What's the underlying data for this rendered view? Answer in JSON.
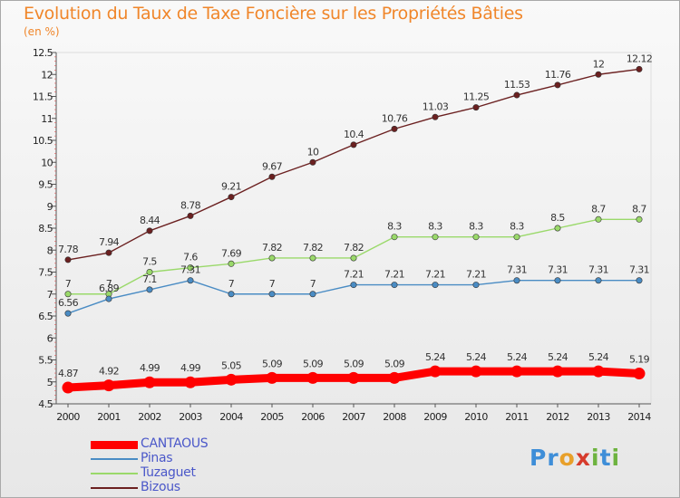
{
  "title": "Evolution du Taux de Taxe Foncière sur les Propriétés Bâties",
  "unit": "(en %)",
  "logo": {
    "letters": [
      "P",
      "r",
      "o",
      "x",
      "i",
      "t",
      "i"
    ],
    "colors": [
      "#3e8ed8",
      "#3e8ed8",
      "#e8a02a",
      "#d63b2c",
      "#6db33f",
      "#3e8ed8",
      "#6db33f"
    ]
  },
  "chart_data": {
    "type": "line",
    "categories": [
      "2000",
      "2001",
      "2002",
      "2003",
      "2004",
      "2005",
      "2006",
      "2007",
      "2008",
      "2009",
      "2010",
      "2011",
      "2012",
      "2013",
      "2014"
    ],
    "y_ticks": [
      "4.5",
      "5",
      "5.5",
      "6",
      "6.5",
      "7",
      "7.5",
      "8",
      "8.5",
      "9",
      "9.5",
      "10",
      "10.5",
      "11",
      "11.5",
      "12",
      "12.5"
    ],
    "ylim": [
      4.5,
      12.5
    ],
    "grid": false,
    "legend_position": "bottom-left",
    "series": [
      {
        "name": "CANTAOUS",
        "color": "#ff0000",
        "values": [
          4.87,
          4.92,
          4.99,
          4.99,
          5.05,
          5.09,
          5.09,
          5.09,
          5.09,
          5.24,
          5.24,
          5.24,
          5.24,
          5.24,
          5.19
        ],
        "labels": [
          "4.87",
          "4.92",
          "4.99",
          "4.99",
          "5.05",
          "5.09",
          "5.09",
          "5.09",
          "5.09",
          "5.24",
          "5.24",
          "5.24",
          "5.24",
          "5.24",
          "5.19"
        ]
      },
      {
        "name": "Pinas",
        "color": "#4a8cc4",
        "values": [
          6.56,
          6.89,
          7.1,
          7.31,
          7,
          7,
          7,
          7.21,
          7.21,
          7.21,
          7.21,
          7.31,
          7.31,
          7.31,
          7.31
        ],
        "labels": [
          "6.56",
          "6.89",
          "7.1",
          "7.31",
          "7",
          "7",
          "7",
          "7.21",
          "7.21",
          "7.21",
          "7.21",
          "7.31",
          "7.31",
          "7.31",
          "7.31"
        ]
      },
      {
        "name": "Tuzaguet",
        "color": "#9ad96a",
        "values": [
          7,
          7,
          7.5,
          7.6,
          7.69,
          7.82,
          7.82,
          7.82,
          8.3,
          8.3,
          8.3,
          8.3,
          8.5,
          8.7,
          8.7
        ],
        "labels": [
          "7",
          "7",
          "7.5",
          "7.6",
          "7.69",
          "7.82",
          "7.82",
          "7.82",
          "8.3",
          "8.3",
          "8.3",
          "8.3",
          "8.5",
          "8.7",
          "8.7"
        ]
      },
      {
        "name": "Bizous",
        "color": "#6b2020",
        "values": [
          7.78,
          7.94,
          8.44,
          8.78,
          9.21,
          9.67,
          10,
          10.4,
          10.76,
          11.03,
          11.25,
          11.53,
          11.76,
          12,
          12.12
        ],
        "labels": [
          "7.78",
          "7.94",
          "8.44",
          "8.78",
          "9.21",
          "9.67",
          "10",
          "10.4",
          "10.76",
          "11.03",
          "11.25",
          "11.53",
          "11.76",
          "12",
          "12.12"
        ]
      }
    ]
  }
}
